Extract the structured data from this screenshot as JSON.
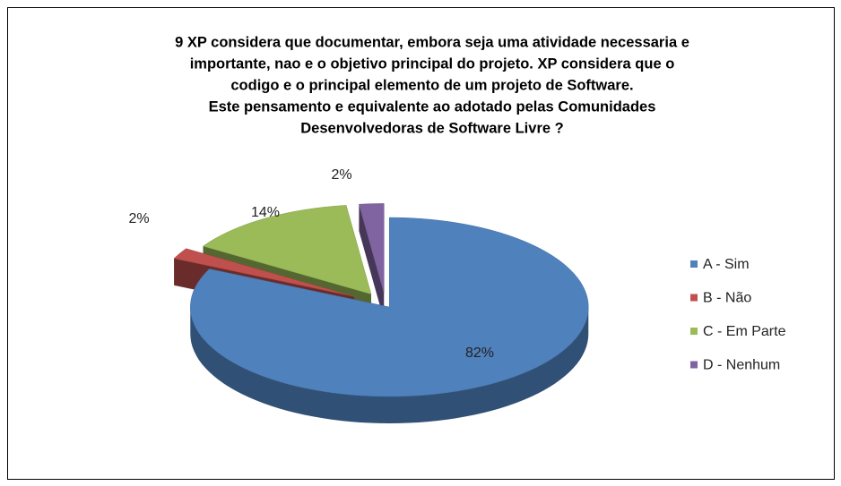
{
  "chart_data": {
    "type": "pie",
    "title": [
      "9  XP considera que documentar, embora seja uma atividade necessaria e",
      "importante, nao e o objetivo principal do projeto. XP considera que o",
      "codigo e o principal elemento de um projeto de Software.",
      "Este pensamento e equivalente ao adotado pelas Comunidades",
      "Desenvolvedoras de Software Livre ?"
    ],
    "categories": [
      "A - Sim",
      "B - Não",
      "C - Em Parte",
      "D - Nenhum"
    ],
    "values": [
      82,
      2,
      14,
      2
    ],
    "value_labels": [
      "82%",
      "2%",
      "14%",
      "2%"
    ],
    "colors": [
      "#4f81bd",
      "#c0504d",
      "#9bbb59",
      "#8064a2"
    ],
    "legend": "right"
  }
}
